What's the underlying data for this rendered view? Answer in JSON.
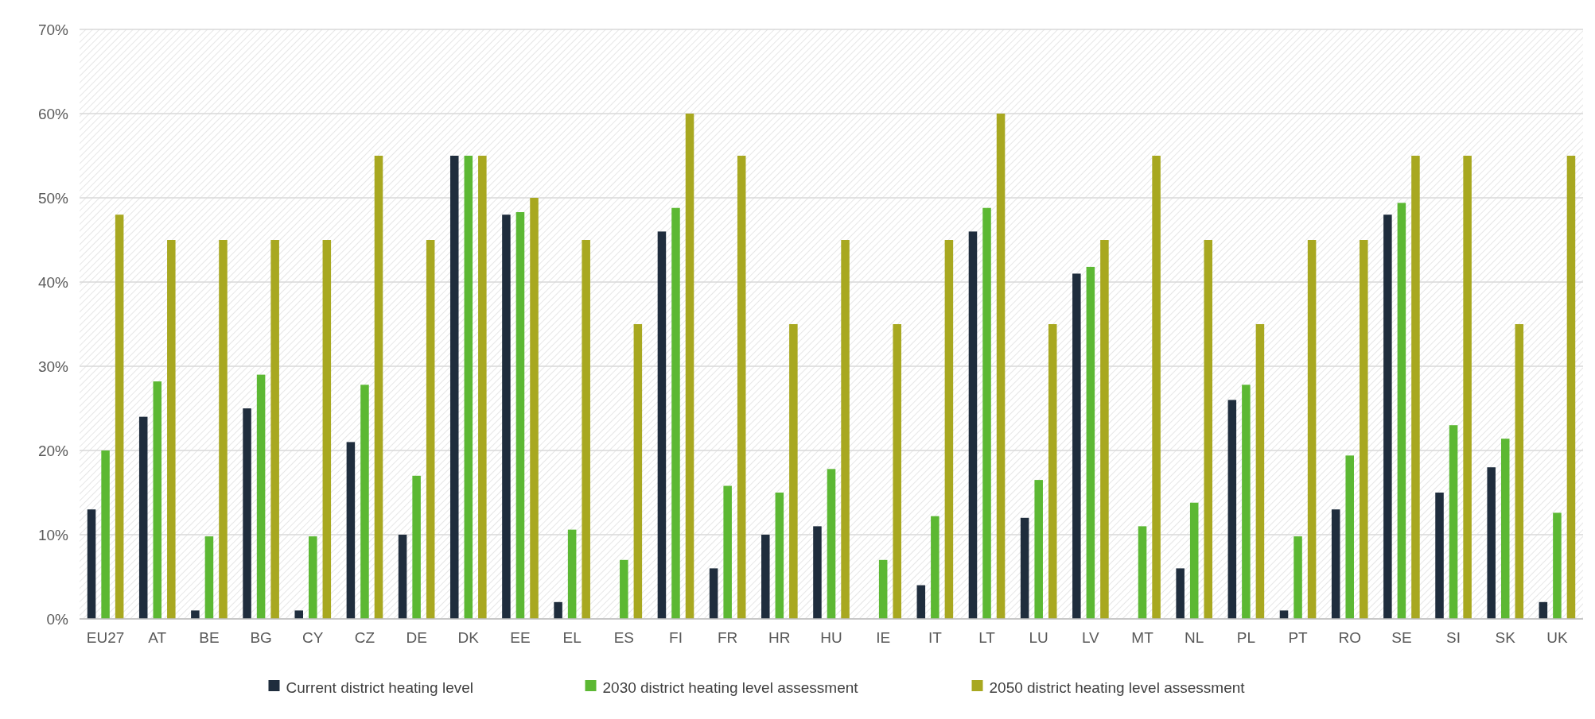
{
  "chart_data": {
    "type": "bar",
    "categories": [
      "EU27",
      "AT",
      "BE",
      "BG",
      "CY",
      "CZ",
      "DE",
      "DK",
      "EE",
      "EL",
      "ES",
      "FI",
      "FR",
      "HR",
      "HU",
      "IE",
      "IT",
      "LT",
      "LU",
      "LV",
      "MT",
      "NL",
      "PL",
      "PT",
      "RO",
      "SE",
      "SI",
      "SK",
      "UK"
    ],
    "series": [
      {
        "name": "Current district heating level",
        "color": "#1f2d3d",
        "values": [
          13,
          24,
          1,
          25,
          1,
          21,
          10,
          55,
          48,
          2,
          0,
          46,
          6,
          10,
          11,
          0,
          4,
          46,
          12,
          41,
          0,
          6,
          26,
          1,
          13,
          48,
          15,
          18,
          2
        ]
      },
      {
        "name": "2030 district heating level assessment",
        "color": "#5cb833",
        "values": [
          20,
          28.2,
          9.8,
          29,
          9.8,
          27.8,
          17,
          55,
          48.3,
          10.6,
          7,
          48.8,
          15.8,
          15,
          17.8,
          7,
          12.2,
          48.8,
          16.5,
          41.8,
          11,
          13.8,
          27.8,
          9.8,
          19.4,
          49.4,
          23,
          21.4,
          12.6
        ]
      },
      {
        "name": "2050 district heating level assessment",
        "color": "#a8a820",
        "values": [
          48,
          45,
          45,
          45,
          45,
          55,
          45,
          55,
          50,
          45,
          35,
          60,
          55,
          35,
          45,
          35,
          45,
          60,
          35,
          45,
          55,
          45,
          35,
          45,
          45,
          55,
          55,
          35,
          55
        ]
      }
    ],
    "ylim": [
      0,
      70
    ],
    "yticks": [
      {
        "value": 0,
        "label": "0%"
      },
      {
        "value": 10,
        "label": "10%"
      },
      {
        "value": 20,
        "label": "20%"
      },
      {
        "value": 30,
        "label": "30%"
      },
      {
        "value": 40,
        "label": "40%"
      },
      {
        "value": 50,
        "label": "50%"
      },
      {
        "value": 60,
        "label": "60%"
      },
      {
        "value": 70,
        "label": "70%"
      }
    ],
    "grid": "y",
    "legend": "bottom"
  }
}
